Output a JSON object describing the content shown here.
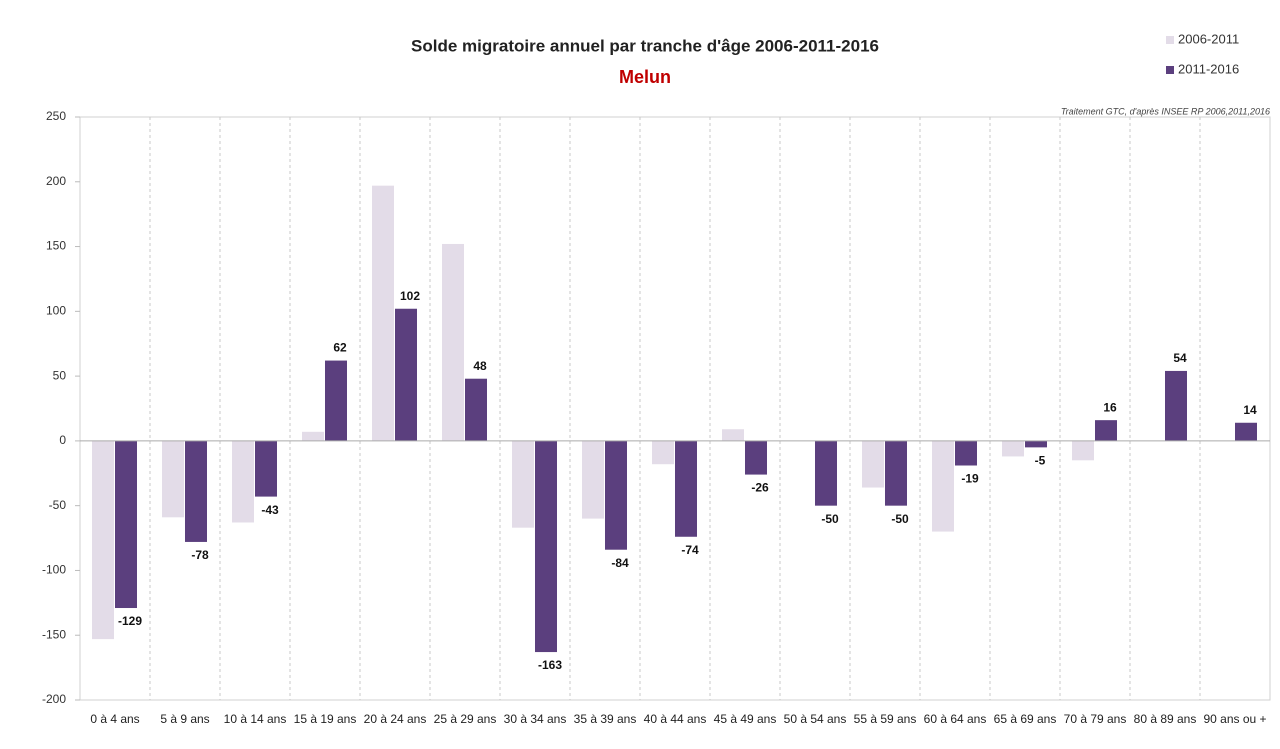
{
  "chart_data": {
    "type": "bar",
    "title": "Solde migratoire annuel par tranche d'âge 2006-2011-2016",
    "subtitle": "Melun",
    "annotation": "Traitement GTC, d'après INSEE RP  2006,2011,2016",
    "categories": [
      "0 à 4 ans",
      "5 à 9 ans",
      "10 à 14 ans",
      "15 à 19 ans",
      "20 à 24 ans",
      "25 à 29 ans",
      "30 à 34 ans",
      "35 à 39 ans",
      "40 à 44 ans",
      "45 à 49 ans",
      "50 à 54 ans",
      "55 à 59 ans",
      "60 à 64 ans",
      "65 à 69 ans",
      "70 à 79 ans",
      "80 à 89 ans",
      "90 ans ou +"
    ],
    "series": [
      {
        "name": "2006-2011",
        "color": "#e3dce8",
        "values": [
          -153,
          -59,
          -63,
          7,
          197,
          152,
          -67,
          -60,
          -18,
          9,
          0,
          -36,
          -70,
          -12,
          -15,
          0,
          0
        ]
      },
      {
        "name": "2011-2016",
        "color": "#5b3f7e",
        "values": [
          -129,
          -78,
          -43,
          62,
          102,
          48,
          -163,
          -84,
          -74,
          -26,
          -50,
          -50,
          -19,
          -5,
          16,
          54,
          14
        ],
        "value_labels": [
          "-129",
          "-78",
          "-43",
          "62",
          "102",
          "48",
          "-163",
          "-84",
          "-74",
          "-26",
          "-50",
          "-50",
          "-19",
          "-5",
          "16",
          "54",
          "14"
        ]
      }
    ],
    "ylim": [
      -200,
      250
    ],
    "yticks": [
      -200,
      -150,
      -100,
      -50,
      0,
      50,
      100,
      150,
      200,
      250
    ],
    "grid": false,
    "legend": "top-right"
  }
}
